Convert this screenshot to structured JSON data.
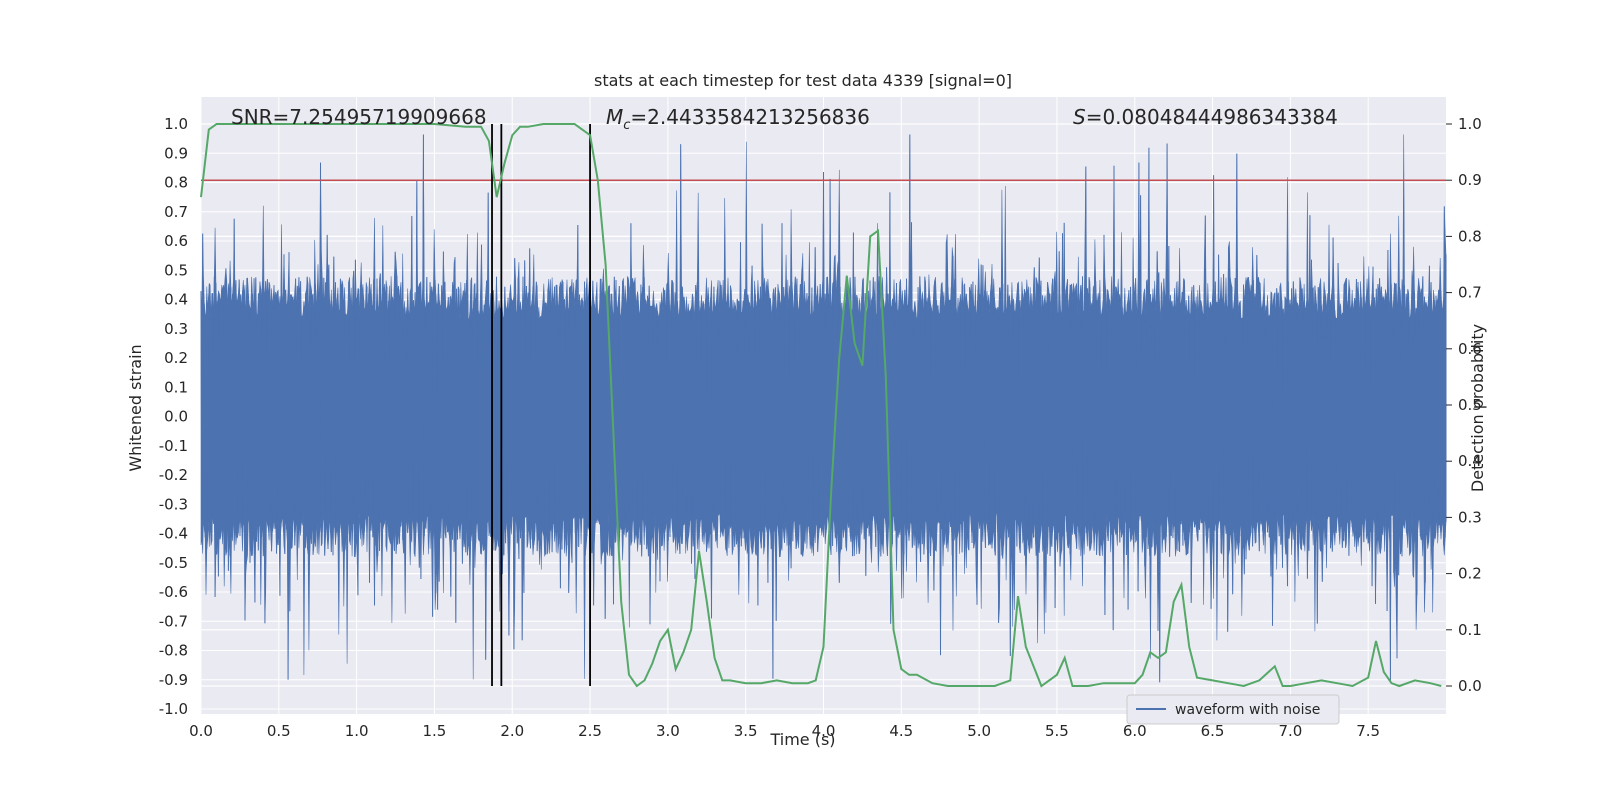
{
  "chart_data": {
    "type": "line",
    "title": "stats at each timestep for test data 4339 [signal=0]",
    "xlabel": "Time (s)",
    "ylabel_left": "Whitened strain",
    "ylabel_right": "Detection probability",
    "xlim": [
      0.0,
      8.0
    ],
    "ylim_left": [
      -1.05,
      1.05
    ],
    "ylim_right": [
      -0.04,
      1.04
    ],
    "xticks": [
      "0.0",
      "0.5",
      "1.0",
      "1.5",
      "2.0",
      "2.5",
      "3.0",
      "3.5",
      "4.0",
      "4.5",
      "5.0",
      "5.5",
      "6.0",
      "6.5",
      "7.0",
      "7.5"
    ],
    "yticks_left": [
      "-1.0",
      "-0.9",
      "-0.8",
      "-0.7",
      "-0.6",
      "-0.5",
      "-0.4",
      "-0.3",
      "-0.2",
      "-0.1",
      "0.0",
      "0.1",
      "0.2",
      "0.3",
      "0.4",
      "0.5",
      "0.6",
      "0.7",
      "0.8",
      "0.9",
      "1.0"
    ],
    "yticks_right": [
      "0.0",
      "0.1",
      "0.2",
      "0.3",
      "0.4",
      "0.5",
      "0.6",
      "0.7",
      "0.8",
      "0.9",
      "1.0"
    ],
    "grid": true,
    "legend_position": "lower-right",
    "legend_label": "waveform with noise",
    "colors": {
      "strain": "#4c72b0",
      "probability": "#55a868",
      "threshold": "#c44e52",
      "markers": "#000000",
      "background": "#eaeaf2",
      "grid": "#ffffff"
    },
    "annotations": {
      "snr": "SNR=7.25495719909668",
      "mc_symbol": "M",
      "mc_sub": "c",
      "mc_value": "=2.4433584213256836",
      "s_symbol": "S",
      "s_value": "=0.08048444986343384"
    },
    "threshold_probability": 0.9,
    "vertical_markers": [
      1.87,
      1.93,
      2.5
    ],
    "strain_series": {
      "name": "waveform with noise",
      "note": "dense whitened noise; typical envelope ~ +/-0.45, sparse spikes up to ~0.97 / down to ~-0.91"
    },
    "probability_series": {
      "x": [
        0.0,
        0.05,
        0.1,
        0.2,
        0.5,
        1.0,
        1.5,
        1.7,
        1.8,
        1.85,
        1.9,
        1.95,
        2.0,
        2.05,
        2.1,
        2.2,
        2.4,
        2.5,
        2.55,
        2.6,
        2.65,
        2.7,
        2.75,
        2.8,
        2.85,
        2.9,
        2.95,
        3.0,
        3.05,
        3.1,
        3.15,
        3.2,
        3.25,
        3.3,
        3.35,
        3.4,
        3.5,
        3.6,
        3.7,
        3.8,
        3.9,
        3.95,
        4.0,
        4.05,
        4.1,
        4.15,
        4.2,
        4.25,
        4.3,
        4.35,
        4.4,
        4.45,
        4.5,
        4.55,
        4.6,
        4.7,
        4.8,
        5.0,
        5.1,
        5.2,
        5.25,
        5.3,
        5.4,
        5.5,
        5.55,
        5.6,
        5.7,
        5.8,
        5.9,
        6.0,
        6.05,
        6.1,
        6.15,
        6.2,
        6.25,
        6.3,
        6.35,
        6.4,
        6.5,
        6.6,
        6.7,
        6.8,
        6.9,
        6.95,
        7.0,
        7.1,
        7.2,
        7.3,
        7.4,
        7.5,
        7.55,
        7.6,
        7.65,
        7.7,
        7.8,
        7.9,
        7.97
      ],
      "y": [
        0.87,
        0.99,
        1.0,
        1.0,
        1.0,
        1.0,
        1.0,
        0.995,
        0.995,
        0.97,
        0.87,
        0.93,
        0.98,
        0.995,
        0.995,
        1.0,
        1.0,
        0.98,
        0.9,
        0.75,
        0.45,
        0.15,
        0.02,
        0.0,
        0.01,
        0.04,
        0.08,
        0.1,
        0.03,
        0.06,
        0.1,
        0.24,
        0.15,
        0.05,
        0.01,
        0.01,
        0.005,
        0.005,
        0.01,
        0.005,
        0.005,
        0.01,
        0.07,
        0.35,
        0.58,
        0.73,
        0.61,
        0.57,
        0.8,
        0.81,
        0.55,
        0.1,
        0.03,
        0.02,
        0.02,
        0.005,
        0.0,
        0.0,
        0.0,
        0.01,
        0.16,
        0.07,
        0.0,
        0.02,
        0.05,
        0.0,
        0.0,
        0.005,
        0.005,
        0.005,
        0.02,
        0.06,
        0.05,
        0.06,
        0.15,
        0.18,
        0.07,
        0.015,
        0.01,
        0.005,
        0.0,
        0.01,
        0.035,
        0.0,
        0.0,
        0.005,
        0.01,
        0.005,
        0.0,
        0.015,
        0.08,
        0.025,
        0.005,
        0.0,
        0.01,
        0.005,
        0.0
      ]
    }
  }
}
